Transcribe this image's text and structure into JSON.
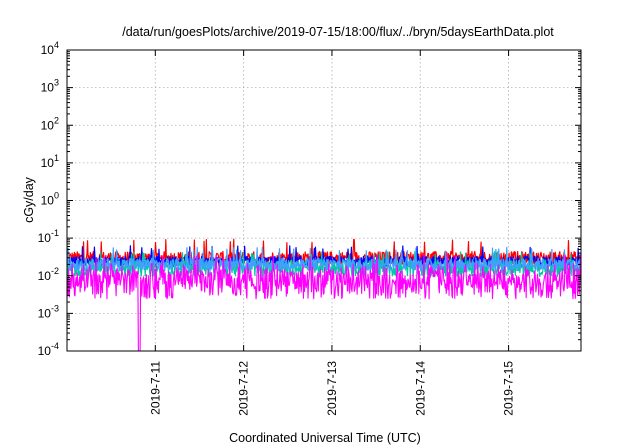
{
  "chart_data": {
    "type": "line",
    "title": "/data/run/goesPlots/archive/2019-07-15/18:00/flux/../bryn/5daysEarthData.plot",
    "xlabel": "Coordinated Universal Time (UTC)",
    "ylabel": "cGy/day",
    "y_scale": "log",
    "ylim": [
      0.0001,
      10000
    ],
    "xlim": [
      0,
      5.82
    ],
    "y_ticks": [
      {
        "base": "10",
        "exp": "-4",
        "value": 0.0001
      },
      {
        "base": "10",
        "exp": "-3",
        "value": 0.001
      },
      {
        "base": "10",
        "exp": "-2",
        "value": 0.01
      },
      {
        "base": "10",
        "exp": "-1",
        "value": 0.1
      },
      {
        "base": "10",
        "exp": "0",
        "value": 1
      },
      {
        "base": "10",
        "exp": "1",
        "value": 10
      },
      {
        "base": "10",
        "exp": "2",
        "value": 100
      },
      {
        "base": "10",
        "exp": "3",
        "value": 1000
      },
      {
        "base": "10",
        "exp": "4",
        "value": 10000
      }
    ],
    "x_ticks": [
      {
        "label": "2019-7-11",
        "value": 1
      },
      {
        "label": "2019-7-12",
        "value": 2
      },
      {
        "label": "2019-7-13",
        "value": 3
      },
      {
        "label": "2019-7-14",
        "value": 4
      },
      {
        "label": "2019-7-15",
        "value": 5
      }
    ],
    "grid": true,
    "legend": "none",
    "series": [
      {
        "color": "#ff0000",
        "baseline": 0.03,
        "spread": 0.12,
        "spike": 0.075
      },
      {
        "color": "#0000ff",
        "baseline": 0.024,
        "spread": 0.1,
        "spike": 0.05
      },
      {
        "color": "#00c8a0",
        "baseline": 0.016,
        "spread": 0.16,
        "spike": 0.035
      },
      {
        "color": "#40a0ff",
        "baseline": 0.02,
        "spread": 0.12,
        "spike": 0.045
      },
      {
        "color": "#ff00ff",
        "baseline": 0.006,
        "spread": 0.28,
        "spike": 0.03,
        "dropout_x": 0.82,
        "dropout_value": 0.0001
      }
    ]
  }
}
